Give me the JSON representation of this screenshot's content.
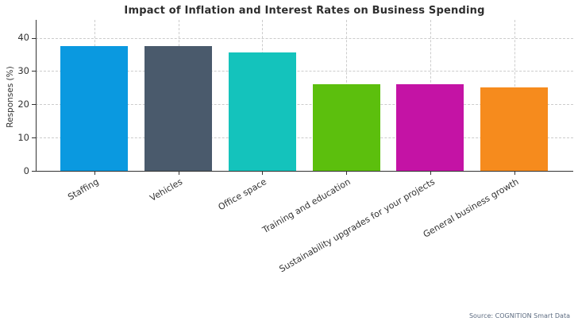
{
  "chart_data": {
    "type": "bar",
    "title": "Impact of Inflation and Interest Rates on Business Spending",
    "categories": [
      "Staffing",
      "Vehicles",
      "Office space",
      "Training and education",
      "Sustainability upgrades for your projects",
      "General business growth"
    ],
    "values": [
      37.4,
      37.5,
      35.5,
      26,
      26,
      25
    ],
    "bar_colors": [
      "#0A99E0",
      "#4A5A6C",
      "#14C3BC",
      "#5CBF0D",
      "#C413A5",
      "#F68B1D"
    ],
    "ylabel": "Responses (%)",
    "xlabel": "",
    "yticks": [
      0,
      10,
      20,
      30,
      40
    ],
    "ylim": [
      0,
      45.4
    ],
    "xtick_rotation_deg": 30,
    "grid": "dashed horizontal at y ticks and dashed vertical at bar centers",
    "legend": "none",
    "source": "Source: COGNITION Smart Data",
    "style_colors": {
      "axis": "#333333",
      "grid": "#cccccc",
      "title_text": "#2e2e2e",
      "tick_text": "#333333",
      "source_text": "#5c6b80"
    }
  }
}
